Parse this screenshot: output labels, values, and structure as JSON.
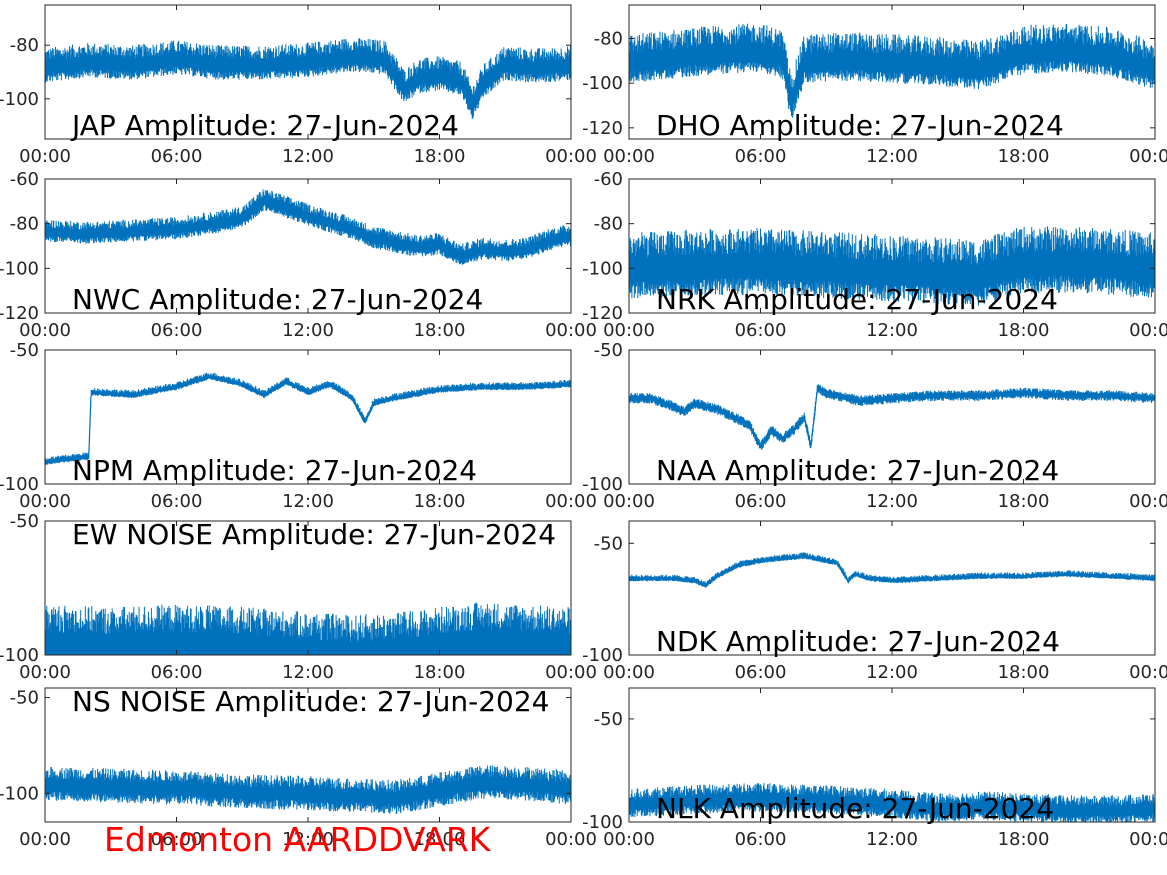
{
  "station_label": "Edmonton AARDDVARK",
  "colors": {
    "trace": "#0072bd",
    "axis": "#262626",
    "station": "#ff0000"
  },
  "chart_data": [
    {
      "type": "line",
      "title": "JAP Amplitude: 27-Jun-2024",
      "col": 0,
      "row": 0,
      "ylim": [
        -115,
        -65
      ],
      "yticks": [
        {
          "v": -80,
          "t": "-80"
        },
        {
          "v": -100,
          "t": "-100"
        }
      ],
      "xticks": [
        "00:00",
        "06:00",
        "12:00",
        "18:00",
        "00:00"
      ],
      "x": [
        0,
        2,
        4,
        6,
        8,
        10,
        12,
        14,
        15.5,
        16.4,
        17,
        18,
        19,
        19.5,
        20,
        21,
        22,
        23,
        24
      ],
      "y": [
        -89,
        -87,
        -88,
        -86,
        -88,
        -88,
        -87,
        -85,
        -86,
        -97,
        -93,
        -92,
        -94,
        -103,
        -95,
        -88,
        -89,
        -89,
        -88
      ],
      "noise": [
        8,
        5,
        2
      ]
    },
    {
      "type": "line",
      "title": "DHO Amplitude: 27-Jun-2024",
      "col": 1,
      "row": 0,
      "ylim": [
        -125,
        -65
      ],
      "yticks": [
        {
          "v": -80,
          "t": "-80"
        },
        {
          "v": -100,
          "t": "-100"
        },
        {
          "v": -120,
          "t": "-120"
        }
      ],
      "xticks": [
        "00:00",
        "06:00",
        "12:00",
        "18:00",
        "00:00"
      ],
      "x": [
        0,
        2,
        4,
        6,
        7,
        7.4,
        8,
        10,
        12,
        14,
        16,
        18,
        20,
        22,
        24
      ],
      "y": [
        -92,
        -90,
        -88,
        -87,
        -90,
        -110,
        -92,
        -91,
        -92,
        -93,
        -95,
        -88,
        -87,
        -89,
        -95
      ],
      "noise": [
        14,
        8,
        3
      ]
    },
    {
      "type": "line",
      "title": "NWC Amplitude: 27-Jun-2024",
      "col": 0,
      "row": 1,
      "ylim": [
        -120,
        -60
      ],
      "yticks": [
        {
          "v": -60,
          "t": "-60"
        },
        {
          "v": -80,
          "t": "-80"
        },
        {
          "v": -100,
          "t": "-100"
        },
        {
          "v": -120,
          "t": "-120"
        }
      ],
      "xticks": [
        "00:00",
        "06:00",
        "12:00",
        "18:00",
        "00:00"
      ],
      "x": [
        0,
        2,
        4,
        6,
        8,
        9,
        10,
        12,
        14,
        15,
        16,
        17,
        18,
        19,
        20,
        21,
        22,
        23,
        24
      ],
      "y": [
        -84,
        -85,
        -84,
        -83,
        -80,
        -78,
        -70,
        -77,
        -83,
        -87,
        -89,
        -91,
        -90,
        -95,
        -92,
        -93,
        -92,
        -88,
        -86
      ],
      "noise": [
        6,
        4,
        1
      ]
    },
    {
      "type": "line",
      "title": "NRK Amplitude: 27-Jun-2024",
      "col": 1,
      "row": 1,
      "ylim": [
        -120,
        -60
      ],
      "yticks": [
        {
          "v": -60,
          "t": "-60"
        },
        {
          "v": -80,
          "t": "-80"
        },
        {
          "v": -100,
          "t": "-100"
        },
        {
          "v": -120,
          "t": "-120"
        }
      ],
      "xticks": [
        "00:00",
        "06:00",
        "12:00",
        "18:00",
        "00:00"
      ],
      "x": [
        0,
        2,
        4,
        6,
        8,
        10,
        12,
        14,
        16,
        18,
        20,
        22,
        24
      ],
      "y": [
        -102,
        -101,
        -100,
        -100,
        -101,
        -102,
        -103,
        -104,
        -105,
        -99,
        -99,
        -100,
        -102
      ],
      "noise": [
        18,
        12,
        4
      ]
    },
    {
      "type": "line",
      "title": "NPM Amplitude: 27-Jun-2024",
      "col": 0,
      "row": 2,
      "ylim": [
        -100,
        -50
      ],
      "yticks": [
        {
          "v": -50,
          "t": "-50"
        },
        {
          "v": -100,
          "t": "-100"
        }
      ],
      "xticks": [
        "00:00",
        "06:00",
        "12:00",
        "18:00",
        "00:00"
      ],
      "x": [
        0,
        1,
        2,
        2.1,
        4,
        6,
        7.5,
        9,
        10,
        11,
        12,
        13,
        14,
        14.6,
        15,
        16,
        18,
        20,
        22,
        24
      ],
      "y": [
        -92,
        -91,
        -90,
        -66,
        -67,
        -64,
        -60,
        -63,
        -67,
        -62,
        -66,
        -63,
        -68,
        -77,
        -70,
        -68,
        -65,
        -64,
        -64,
        -63
      ],
      "noise": [
        2,
        1,
        0
      ]
    },
    {
      "type": "line",
      "title": "NAA Amplitude: 27-Jun-2024",
      "col": 1,
      "row": 2,
      "ylim": [
        -100,
        -50
      ],
      "yticks": [
        {
          "v": -50,
          "t": "-50"
        },
        {
          "v": -100,
          "t": "-100"
        }
      ],
      "xticks": [
        "00:00",
        "06:00",
        "12:00",
        "18:00",
        "00:00"
      ],
      "x": [
        0,
        1,
        2,
        2.5,
        3,
        4,
        5,
        5.5,
        6,
        6.5,
        7,
        7.5,
        8,
        8.3,
        8.6,
        9,
        10,
        10.5,
        12,
        14,
        16,
        18,
        20,
        22,
        24
      ],
      "y": [
        -68,
        -68,
        -71,
        -73,
        -70,
        -72,
        -76,
        -78,
        -86,
        -80,
        -83,
        -80,
        -75,
        -86,
        -64,
        -66,
        -68,
        -69,
        -68,
        -67,
        -67,
        -66,
        -67,
        -67,
        -68
      ],
      "noise": [
        2,
        2,
        0
      ]
    },
    {
      "type": "line",
      "title": "EW NOISE Amplitude: 27-Jun-2024",
      "col": 0,
      "row": 3,
      "ylim": [
        -100,
        -50
      ],
      "yticks": [
        {
          "v": -50,
          "t": "-50"
        },
        {
          "v": -100,
          "t": "-100"
        }
      ],
      "xticks": [
        "00:00",
        "06:00",
        "12:00",
        "18:00",
        "00:00"
      ],
      "x": [
        0,
        3,
        6,
        9,
        12,
        14,
        16,
        18,
        20,
        22,
        24
      ],
      "y": [
        -97,
        -98,
        -97,
        -98,
        -100,
        -101,
        -100,
        -98,
        -96,
        -97,
        -98
      ],
      "noise": [
        16,
        11,
        4
      ]
    },
    {
      "type": "line",
      "title": "NDK Amplitude: 27-Jun-2024",
      "col": 1,
      "row": 3,
      "ylim": [
        -100,
        -40
      ],
      "yticks": [
        {
          "v": -50,
          "t": "-50"
        },
        {
          "v": -100,
          "t": "-100"
        }
      ],
      "xticks": [
        "00:00",
        "06:00",
        "12:00",
        "18:00",
        "00:00"
      ],
      "x": [
        0,
        2,
        3,
        3.5,
        4,
        5,
        6,
        7,
        8,
        9,
        9.5,
        10,
        10.3,
        11,
        12,
        14,
        16,
        18,
        20,
        22,
        24
      ],
      "y": [
        -66,
        -66,
        -67,
        -69,
        -65,
        -60,
        -58,
        -57,
        -56,
        -58,
        -59,
        -67,
        -64,
        -66,
        -67,
        -66,
        -65,
        -65,
        -64,
        -65,
        -66
      ],
      "noise": [
        2,
        1,
        0
      ]
    },
    {
      "type": "line",
      "title": "NS NOISE Amplitude: 27-Jun-2024",
      "col": 0,
      "row": 4,
      "ylim": [
        -115,
        -45
      ],
      "yticks": [
        {
          "v": -50,
          "t": "-50"
        },
        {
          "v": -100,
          "t": "-100"
        }
      ],
      "xticks": [
        "00:00",
        "06:00",
        "12:00",
        "18:00",
        "00:00"
      ],
      "x": [
        0,
        3,
        6,
        9,
        12,
        14,
        16,
        18,
        20,
        22,
        24
      ],
      "y": [
        -96,
        -97,
        -98,
        -100,
        -101,
        -102,
        -103,
        -99,
        -95,
        -96,
        -98
      ],
      "noise": [
        10,
        8,
        3
      ]
    },
    {
      "type": "line",
      "title": "NLK Amplitude: 27-Jun-2024",
      "col": 1,
      "row": 4,
      "ylim": [
        -100,
        -35
      ],
      "yticks": [
        {
          "v": -50,
          "t": "-50"
        },
        {
          "v": -100,
          "t": "-100"
        }
      ],
      "xticks": [
        "00:00",
        "06:00",
        "12:00",
        "18:00",
        "00:00"
      ],
      "x": [
        0,
        3,
        6,
        9,
        12,
        14,
        16,
        18,
        20,
        22,
        24
      ],
      "y": [
        -92,
        -90,
        -89,
        -90,
        -92,
        -94,
        -93,
        -94,
        -95,
        -95,
        -94
      ],
      "noise": [
        8,
        6,
        2
      ]
    }
  ]
}
